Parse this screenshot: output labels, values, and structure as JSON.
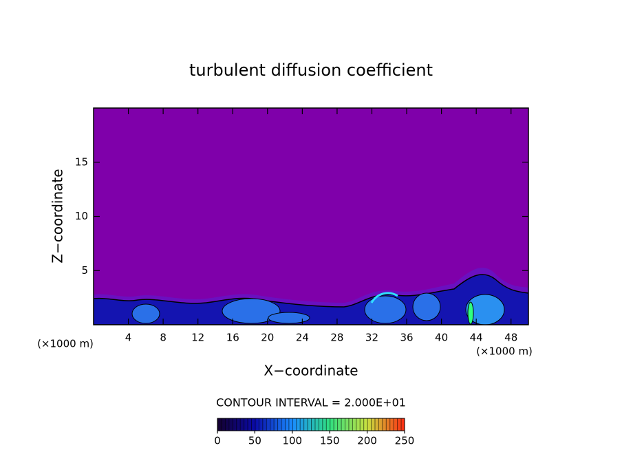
{
  "chart_data": {
    "type": "contour",
    "title": "turbulent diffusion coefficient",
    "xlabel": "X−coordinate",
    "ylabel": "Z−coordinate",
    "xunit": "(×1000 m)",
    "yunit": "(×1000 m)",
    "xlim": [
      0,
      50
    ],
    "xticks": [
      4,
      8,
      12,
      16,
      20,
      24,
      28,
      32,
      36,
      40,
      44,
      48
    ],
    "ylim": [
      0,
      20
    ],
    "yticks": [
      5,
      10,
      15
    ],
    "background_color": "#7f00aa",
    "contour_interval": "CONTOUR INTERVAL = 2.000E+01",
    "colorbar": {
      "lim": [
        0,
        250
      ],
      "ticks": [
        0,
        50,
        100,
        150,
        200,
        250
      ],
      "colors": [
        "#14002e",
        "#0a0aa8",
        "#1a8cff",
        "#30e080",
        "#c8e040",
        "#ff2a10"
      ]
    }
  }
}
